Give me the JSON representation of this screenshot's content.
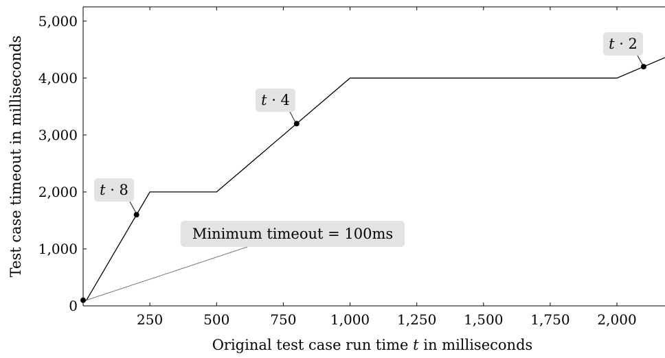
{
  "chart_data": {
    "type": "line",
    "title": "",
    "xlabel": "Original test case run time t in milliseconds",
    "ylabel": "Test case timeout in milliseconds",
    "xlim": [
      0,
      2180
    ],
    "ylim": [
      0,
      5250
    ],
    "x_ticks": [
      250,
      500,
      750,
      1000,
      1250,
      1500,
      1750,
      2000
    ],
    "x_tick_labels": [
      "250",
      "500",
      "750",
      "1,000",
      "1,250",
      "1,500",
      "1,750",
      "2,000"
    ],
    "y_ticks": [
      0,
      1000,
      2000,
      3000,
      4000,
      5000
    ],
    "y_tick_labels": [
      "0",
      "1,000",
      "2,000",
      "3,000",
      "4,000",
      "5,000"
    ],
    "grid": false,
    "series": [
      {
        "x": [
          0,
          12.5,
          250,
          500,
          1000,
          2000,
          2180
        ],
        "y": [
          100,
          100,
          2000,
          2000,
          4000,
          4000,
          4360
        ]
      }
    ],
    "points": [
      {
        "x": 0,
        "y": 100
      },
      {
        "x": 200,
        "y": 1600
      },
      {
        "x": 800,
        "y": 3200
      },
      {
        "x": 2100,
        "y": 4200
      }
    ],
    "annotations": [
      {
        "text": "Minimum timeout = 100ms",
        "x": 0,
        "y": 100
      },
      {
        "text": "t · 8",
        "x": 200,
        "y": 1600
      },
      {
        "text": "t · 4",
        "x": 800,
        "y": 3200
      },
      {
        "text": "t · 2",
        "x": 2100,
        "y": 4200
      }
    ]
  }
}
